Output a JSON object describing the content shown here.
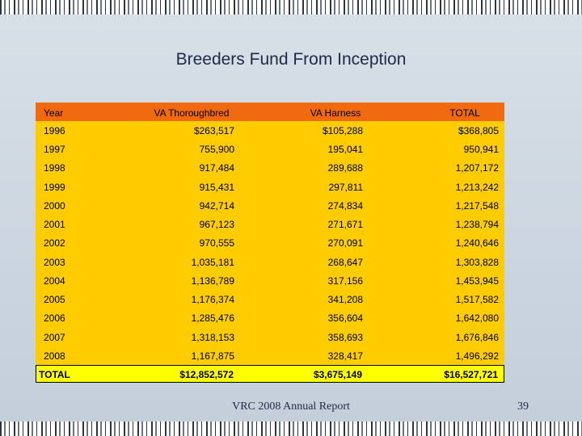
{
  "title": "Breeders Fund From Inception",
  "table": {
    "header": [
      "Year",
      "VA Thoroughbred",
      "VA Harness",
      "TOTAL"
    ],
    "rows": [
      [
        "1996",
        "$263,517",
        "$105,288",
        "$368,805"
      ],
      [
        "1997",
        "755,900",
        "195,041",
        "950,941"
      ],
      [
        "1998",
        "917,484",
        "289,688",
        "1,207,172"
      ],
      [
        "1999",
        "915,431",
        "297,811",
        "1,213,242"
      ],
      [
        "2000",
        "942,714",
        "274,834",
        "1,217,548"
      ],
      [
        "2001",
        "967,123",
        "271,671",
        "1,238,794"
      ],
      [
        "2002",
        "970,555",
        "270,091",
        "1,240,646"
      ],
      [
        "2003",
        "1,035,181",
        "268,647",
        "1,303,828"
      ],
      [
        "2004",
        "1,136,789",
        "317,156",
        "1,453,945"
      ],
      [
        "2005",
        "1,176,374",
        "341,208",
        "1,517,582"
      ],
      [
        "2006",
        "1,285,476",
        "356,604",
        "1,642,080"
      ],
      [
        "2007",
        "1,318,153",
        "358,693",
        "1,676,846"
      ],
      [
        "2008",
        "1,167,875",
        "328,417",
        "1,496,292"
      ]
    ],
    "total": [
      "TOTAL",
      "$12,852,572",
      "$3,675,149",
      "$16,527,721"
    ]
  },
  "footer": "VRC 2008 Annual Report",
  "page_number": "39"
}
